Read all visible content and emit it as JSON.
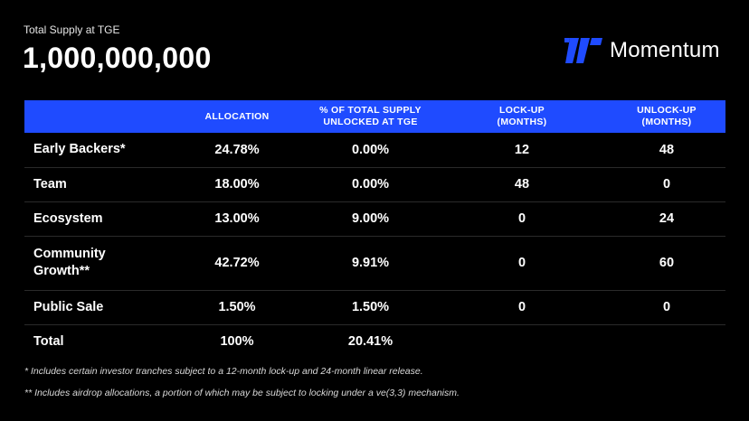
{
  "header": {
    "supply_label": "Total Supply at TGE",
    "supply_value": "1,000,000,000",
    "brand_name": "Momentum",
    "brand_icon": "momentum-logo-icon",
    "brand_color": "#1f4bff"
  },
  "table": {
    "header_color": "#1f4bff",
    "columns": [
      "",
      "ALLOCATION",
      "% OF TOTAL SUPPLY\nUNLOCKED AT TGE",
      "LOCK-UP\n(MONTHS)",
      "UNLOCK-UP\n(MONTHS)"
    ],
    "rows": [
      [
        "Early Backers*",
        "24.78%",
        "0.00%",
        "12",
        "48"
      ],
      [
        "Team",
        "18.00%",
        "0.00%",
        "48",
        "0"
      ],
      [
        "Ecosystem",
        "13.00%",
        "9.00%",
        "0",
        "24"
      ],
      [
        "Community Growth**",
        "42.72%",
        "9.91%",
        "0",
        "60"
      ],
      [
        "Public Sale",
        "1.50%",
        "1.50%",
        "0",
        "0"
      ],
      [
        "Total",
        "100%",
        "20.41%",
        "",
        ""
      ]
    ]
  },
  "footnotes": {
    "first": "* Includes certain investor tranches subject to a 12-month lock-up and 24-month linear release.",
    "second": "** Includes airdrop allocations, a portion of which may be subject to locking under a ve(3,3) mechanism."
  }
}
